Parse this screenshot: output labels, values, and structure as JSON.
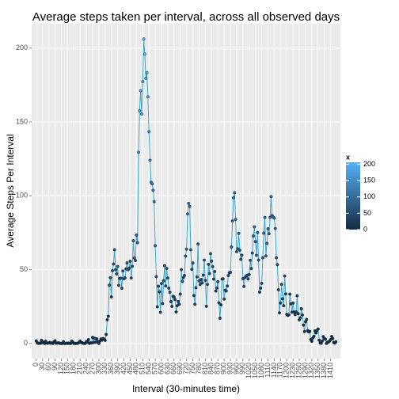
{
  "chart_data": {
    "type": "line",
    "title": "Average steps taken per interval, across all observed days",
    "x_label": "Interval (30-minutes time)",
    "y_label": "Average Steps Per Interval",
    "x": [
      0,
      5,
      10,
      15,
      20,
      25,
      30,
      35,
      40,
      45,
      50,
      55,
      60,
      65,
      70,
      75,
      80,
      85,
      90,
      95,
      100,
      105,
      110,
      115,
      120,
      125,
      130,
      135,
      140,
      145,
      150,
      155,
      160,
      165,
      170,
      175,
      180,
      185,
      190,
      195,
      200,
      205,
      210,
      215,
      220,
      225,
      230,
      235,
      240,
      245,
      250,
      255,
      260,
      265,
      270,
      275,
      280,
      285,
      290,
      295,
      300,
      305,
      310,
      315,
      320,
      325,
      330,
      335,
      340,
      345,
      350,
      355,
      360,
      365,
      370,
      375,
      380,
      385,
      390,
      395,
      400,
      405,
      410,
      415,
      420,
      425,
      430,
      435,
      440,
      445,
      450,
      455,
      460,
      465,
      470,
      475,
      480,
      485,
      490,
      495,
      500,
      505,
      510,
      515,
      520,
      525,
      530,
      535,
      540,
      545,
      550,
      555,
      560,
      565,
      570,
      575,
      580,
      585,
      590,
      595,
      600,
      605,
      610,
      615,
      620,
      625,
      630,
      635,
      640,
      645,
      650,
      655,
      660,
      665,
      670,
      675,
      680,
      685,
      690,
      695,
      700,
      705,
      710,
      715,
      720,
      725,
      730,
      735,
      740,
      745,
      750,
      755,
      760,
      765,
      770,
      775,
      780,
      785,
      790,
      795,
      800,
      805,
      810,
      815,
      820,
      825,
      830,
      835,
      840,
      845,
      850,
      855,
      860,
      865,
      870,
      875,
      880,
      885,
      890,
      895,
      900,
      905,
      910,
      915,
      920,
      925,
      930,
      935,
      940,
      945,
      950,
      955,
      960,
      965,
      970,
      975,
      980,
      985,
      990,
      995,
      1000,
      1005,
      1010,
      1015,
      1020,
      1025,
      1030,
      1035,
      1040,
      1045,
      1050,
      1055,
      1060,
      1065,
      1070,
      1075,
      1080,
      1085,
      1090,
      1095,
      1100,
      1105,
      1110,
      1115,
      1120,
      1125,
      1130,
      1135,
      1140,
      1145,
      1150,
      1155,
      1160,
      1165,
      1170,
      1175,
      1180,
      1185,
      1190,
      1195,
      1200,
      1205,
      1210,
      1215,
      1220,
      1225,
      1230,
      1235,
      1240,
      1245,
      1250,
      1255,
      1260,
      1265,
      1270,
      1275,
      1280,
      1285,
      1290,
      1295,
      1300,
      1305,
      1310,
      1315,
      1320,
      1325,
      1330,
      1335,
      1340,
      1345,
      1350,
      1355,
      1360,
      1365,
      1370,
      1375,
      1380,
      1385,
      1390,
      1395,
      1400,
      1405,
      1410,
      1415,
      1420,
      1425,
      1430,
      1435
    ],
    "series": [
      {
        "color": "#3aa7cc",
        "values": [
          1.72,
          0.34,
          0.13,
          0.15,
          0.08,
          2.09,
          0.53,
          0.87,
          0,
          1.47,
          0.3,
          0.13,
          0.32,
          0.68,
          0.15,
          0.34,
          0,
          1.11,
          1.83,
          0.17,
          0.17,
          0.38,
          0.26,
          0,
          0,
          0,
          1.13,
          0,
          0,
          0.13,
          0,
          0.23,
          0,
          0,
          1.55,
          0.94,
          0,
          0,
          0,
          0,
          0.21,
          0.62,
          1.62,
          0.58,
          0.49,
          0.08,
          0,
          0,
          1.19,
          0.94,
          2.57,
          0,
          0.34,
          0.36,
          4.11,
          0.66,
          3.49,
          0.83,
          3.11,
          1.11,
          0,
          1.57,
          3,
          2.25,
          3.32,
          2.96,
          2.09,
          6.06,
          16.02,
          18.34,
          39.45,
          44.49,
          31.49,
          49.26,
          53.77,
          63.45,
          49.96,
          47.08,
          52.15,
          39.34,
          44.02,
          44.17,
          37.36,
          49.04,
          43.81,
          44.38,
          50.51,
          54.51,
          49.92,
          50.98,
          55.68,
          44.32,
          52.26,
          69.55,
          57.85,
          56.15,
          73.38,
          68.21,
          129.43,
          157.53,
          171.15,
          155.4,
          177.3,
          206.17,
          195.92,
          179.57,
          183.4,
          167.02,
          143.45,
          124.04,
          109.11,
          108.11,
          103.72,
          95.96,
          66.21,
          45.23,
          24.79,
          38.75,
          34.98,
          21.06,
          40.57,
          26.98,
          42.42,
          52.66,
          38.92,
          50.79,
          44.28,
          37.42,
          34.7,
          28.34,
          25.09,
          31.94,
          31.36,
          29.68,
          21.32,
          25.55,
          28.38,
          26.47,
          33.43,
          49.98,
          42.04,
          44.6,
          46.04,
          59.19,
          63.87,
          87.7,
          94.85,
          92.77,
          63.4,
          50.17,
          54.47,
          32.42,
          26.53,
          37.74,
          45.06,
          67.28,
          42.34,
          39.89,
          43.26,
          40.98,
          46.25,
          56.43,
          42.75,
          25.13,
          39.96,
          53.55,
          47.32,
          60.81,
          55.75,
          51.96,
          43.58,
          48.7,
          35.47,
          37.55,
          41.85,
          27.51,
          17.11,
          26.08,
          43.62,
          43.77,
          30.02,
          36.08,
          35.49,
          38.85,
          45.96,
          47.75,
          48.13,
          65.32,
          82.91,
          98.66,
          102.11,
          83.96,
          62.13,
          64.13,
          74.55,
          63.17,
          56.91,
          59.77,
          43.87,
          38.57,
          44.66,
          45.45,
          46.21,
          43.68,
          46.62,
          56.3,
          50.72,
          61.23,
          72.72,
          78.94,
          68.94,
          59.66,
          75.09,
          56.51,
          34.77,
          37.45,
          40.68,
          58.02,
          74.7,
          85.32,
          59.26,
          67.77,
          77.7,
          74.25,
          85.34,
          99.45,
          86.58,
          85.6,
          84.87,
          77.83,
          58.04,
          53.36,
          36.32,
          20.72,
          27.4,
          40.02,
          30.21,
          25.55,
          45.66,
          33.53,
          19.62,
          19.02,
          19.34,
          33.34,
          26.81,
          21.17,
          27.3,
          21.34,
          19.55,
          21.32,
          32.3,
          20.15,
          15.94,
          17.23,
          23.45,
          19.25,
          12.45,
          8.02,
          14.66,
          16.3,
          8.68,
          7.79,
          8.13,
          2.62,
          1.45,
          3.68,
          4.81,
          8.51,
          7.08,
          8.7,
          9.75,
          2.21,
          0.32,
          0.11,
          1.6,
          4.6,
          3.3,
          2.85,
          0,
          0.83,
          0.96,
          1.58,
          2.6,
          4.7,
          3.3,
          0.64,
          0.23,
          1.08
        ]
      }
    ],
    "xlim": [
      -22,
      1457
    ],
    "xticks": [
      0,
      30,
      60,
      90,
      120,
      150,
      180,
      210,
      240,
      270,
      300,
      330,
      360,
      390,
      420,
      450,
      480,
      510,
      540,
      570,
      600,
      630,
      660,
      690,
      720,
      750,
      780,
      810,
      840,
      870,
      900,
      930,
      960,
      990,
      1020,
      1050,
      1080,
      1110,
      1140,
      1170,
      1200,
      1230,
      1260,
      1290,
      1320,
      1350,
      1380,
      1410
    ],
    "ylim": [
      -10.3,
      216.5
    ],
    "yticks": [
      0,
      50,
      100,
      150,
      200
    ],
    "grid": true,
    "legend": {
      "title": "x",
      "position": "right",
      "low_color": "#132B43",
      "high_color": "#56B1F7",
      "lim": [
        0,
        206.17
      ],
      "ticks": [
        0,
        50,
        100,
        150,
        200
      ]
    }
  }
}
